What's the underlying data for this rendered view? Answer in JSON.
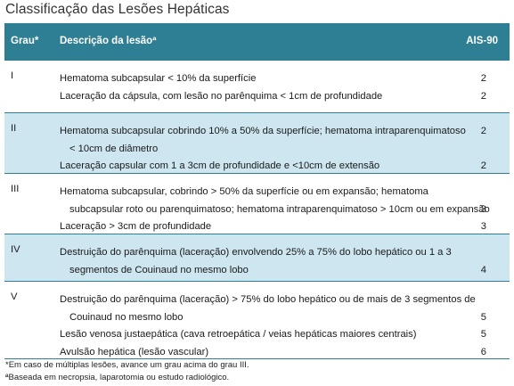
{
  "title": "Classificação das Lesões Hepáticas",
  "headers": {
    "grau": "Grau*",
    "descricao": "Descrição da lesãoª",
    "ais": "AIS-90"
  },
  "rows": [
    {
      "grau": "I",
      "lines": [
        {
          "text": "Hematoma subcapsular < 10% da superfície",
          "ais": "2",
          "indent": false
        },
        {
          "text": "Laceração da cápsula, com lesão no parênquima < 1cm de profundidade",
          "ais": "2",
          "indent": false
        }
      ]
    },
    {
      "grau": "II",
      "lines": [
        {
          "text": "Hematoma subcapsular cobrindo 10% a 50% da superfície; hematoma intraparenquimatoso",
          "ais": "2",
          "indent": false
        },
        {
          "text": "< 10cm de diâmetro",
          "ais": "",
          "indent": true
        },
        {
          "text": "Laceração capsular com 1 a 3cm de profundidade e  <10cm de extensão",
          "ais": "2",
          "indent": false
        }
      ]
    },
    {
      "grau": "III",
      "lines": [
        {
          "text": "Hematoma subcapsular, cobrindo > 50% da superfície ou em expansão; hematoma",
          "ais": "",
          "indent": false
        },
        {
          "text": "subcapsular roto ou parenquimatoso; hematoma intraparenquimatoso > 10cm ou em expansão",
          "ais": "3",
          "indent": true
        },
        {
          "text": "Laceração > 3cm de profundidade",
          "ais": "3",
          "indent": false
        }
      ]
    },
    {
      "grau": "IV",
      "lines": [
        {
          "text": "Destruição do parênquima (laceração) envolvendo 25% a 75% do lobo hepático ou 1 a 3",
          "ais": "",
          "indent": false
        },
        {
          "text": "segmentos de Couinaud no mesmo lobo",
          "ais": "4",
          "indent": true
        }
      ]
    },
    {
      "grau": "V",
      "lines": [
        {
          "text": "Destruição do parênquima (laceração) > 75% do lobo hepático ou de mais de 3 segmentos de",
          "ais": "",
          "indent": false
        },
        {
          "text": "Couinaud no mesmo lobo",
          "ais": "5",
          "indent": true
        },
        {
          "text": "Lesão venosa justaepática (cava retroepática / veias hepáticas maiores centrais)",
          "ais": "5",
          "indent": false
        },
        {
          "text": "Avulsão hepática (lesão vascular)",
          "ais": "6",
          "indent": false
        }
      ]
    }
  ],
  "footnotes": [
    "*Em caso de múltiplas lesões, avance um grau acima do grau III.",
    "ªBaseada em necropsia, laparotomia ou estudo radiológico."
  ],
  "colors": {
    "header": "#2f7f94",
    "shade": "#cde6f0"
  }
}
